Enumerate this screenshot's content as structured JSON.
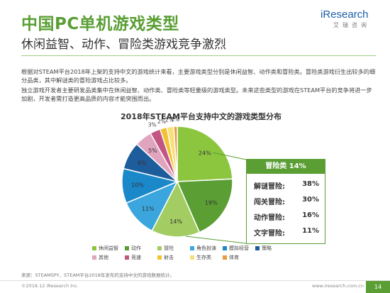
{
  "header": {
    "title": "中国PC单机游戏类型",
    "subtitle": "休闲益智、动作、冒险类游戏竞争激烈",
    "logo": "iResearch",
    "logo_sub": "艾瑞咨询"
  },
  "body": {
    "paragraph1": "根据对STEAM平台2018年上架的支持中文的游戏统计来看，主要游戏类型分别是休闲益智、动作类和冒险类。冒险类游戏衍生出较多的细分品类，其中解谜类的冒险游戏占比较多。",
    "paragraph2": "独立游戏开发者主要研发品类集中在休闲益智、动作类、冒险类等轻量级的游戏类型。未来这些类型的游戏在STEAM平台的竞争将进一步加剧，开发者需打造更高品质的内容才能突围而出。"
  },
  "chart_data": {
    "type": "pie",
    "title": "2018年STEAM平台支持中文的游戏类型分布",
    "slices": [
      {
        "name": "休闲益智",
        "value": 24,
        "label": "24%",
        "color": "#8cc63f"
      },
      {
        "name": "动作",
        "value": 19,
        "label": "19%",
        "color": "#5a9e34"
      },
      {
        "name": "冒险",
        "value": 14,
        "label": "14%",
        "color": "#a3cd62"
      },
      {
        "name": "角色扮演",
        "value": 11,
        "label": "11%",
        "color": "#3aa6dd"
      },
      {
        "name": "模拟经营",
        "value": 10,
        "label": "10%",
        "color": "#1a88c9"
      },
      {
        "name": "策略",
        "value": 8,
        "label": "8%",
        "color": "#1e5d9b"
      },
      {
        "name": "其他",
        "value": 5,
        "label": "5%",
        "color": "#e0a4bf"
      },
      {
        "name": "竞速",
        "value": 3,
        "label": "3%",
        "color": "#c25582"
      },
      {
        "name": "射击",
        "value": 2,
        "label": "2%",
        "color": "#f1c232"
      },
      {
        "name": "生存类",
        "value": 2,
        "label": "2%",
        "color": "#f7e07a"
      },
      {
        "name": "体育",
        "value": 1,
        "label": "1%",
        "color": "#e89a3c"
      }
    ],
    "callout": {
      "title": "冒险类 14%",
      "rows": [
        {
          "label": "解谜冒险:",
          "value": "38%"
        },
        {
          "label": "闯关冒险:",
          "value": "30%"
        },
        {
          "label": "动作冒险:",
          "value": "16%"
        },
        {
          "label": "文字冒险:",
          "value": "11%"
        }
      ]
    }
  },
  "footer": {
    "source": "来源：STEAMSPY、STEAM平台2018年发布的支持中文的游戏数据统计。",
    "copyright": "©2018.12 iResearch Inc.",
    "website": "www.iresearch.com.cn",
    "page": "14"
  }
}
